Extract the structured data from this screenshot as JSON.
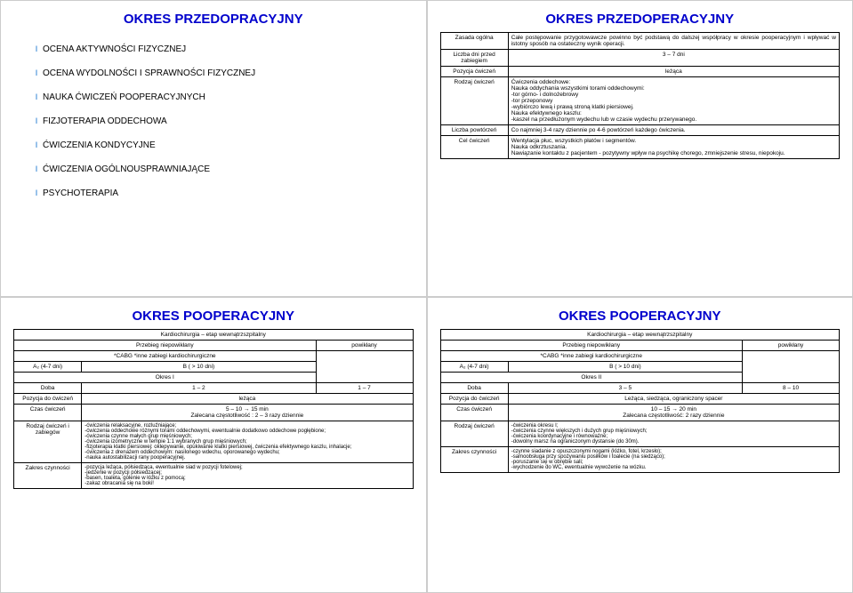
{
  "slide1": {
    "title": "OKRES PRZEDOPRACYJNY",
    "items": [
      "OCENA AKTYWNOŚCI FIZYCZNEJ",
      "OCENA WYDOLNOŚCI I SPRAWNOŚCI FIZYCZNEJ",
      "NAUKA ĆWICZEŃ POOPERACYJNYCH",
      "FIZJOTERAPIA ODDECHOWA",
      "ĆWICZENIA KONDYCYJNE",
      "ĆWICZENIA OGÓLNOUSPRAWNIAJĄCE",
      "PSYCHOTERAPIA"
    ]
  },
  "slide2": {
    "title": "OKRES PRZEDOPERACYJNY",
    "rows": {
      "r1l": "Zasada ogólna",
      "r1v": "Całe postępowanie przygotowawcze powinno być podstawą do dalszej współpracy w okresie pooperacyjnym i wpływać w istotny sposób na ostateczny wynik operacji.",
      "r2l": "Liczba dni przed zabiegiem",
      "r2v": "3 – 7 dni",
      "r3l": "Pozycja ćwiczeń",
      "r3v": "leżąca",
      "r4l": "Rodzaj ćwiczeń",
      "r4v": "Ćwiczenia oddechowe:\nNauka oddychania wszystkimi torami oddechowymi:\n-tor górno- i dolnożebrowy\n-tor przeponowy\n-wybiórczo lewą i prawą stroną klatki piersiowej.\nNauka efektywnego kaszlu:\n-kaszel na przedłużonym wydechu lub w czasie wydechu przerywanego.",
      "r5l": "Liczba powtórzeń",
      "r5v": "Co najmniej 3-4 razy dziennie po 4-6 powtórzeń każdego ćwiczenia.",
      "r6l": "Cel ćwiczeń",
      "r6v": "Wentylacja płuc, wszystkich płatów i segmentów.\nNauka odkrztuszania.\nNawiązanie kontaktu z pacjentem - pozytywny wpływ na psychikę chorego, zmniejszenie stresu, niepokoju."
    }
  },
  "slide3": {
    "title": "OKRES POOPERACYJNY",
    "h1": "Kardiochirurgia – etap wewnątrzszpitalny",
    "h2a": "Przebieg niepowikłany",
    "h2b": "powikłany",
    "h3": "*CABG    *inne zabiegi kardiochirurgiczne",
    "h4a": "A₂ (4-7 dni)",
    "h4b": "B ( > 10 dni)",
    "h5": "Okres I",
    "r1l": "Doba",
    "r1a": "1 – 2",
    "r1b": "1 – 7",
    "r2l": "Pozycja do ćwiczeń",
    "r2v": "leżąca",
    "r3l": "Czas ćwiczeń",
    "r3v": "5 – 10 → 15 min\nZalecana częstotliwość : 2 – 3 razy dziennie",
    "r4l": "Rodzaj ćwiczeń i zabiegów",
    "r4v": "-ćwiczenia relaksacyjne, rozluźniające;\n-ćwiczenia oddechowe różnymi torami oddechowymi, ewentualnie dodatkowo oddechowe pogłębione;\n-ćwiczenia czynne małych grup mięśniowych;\n-ćwiczenia izometryczne w tempie 1:1 wybranych grup mięśniowych;\n-fizjoterapia klatki piersiowej: oklepywanie, opukiwanie klatki piersiowej, ćwiczenia efektywnego kaszlu, inhalacje;\n-ćwiczenia z drenażem oddechowym: nasilonego wdechu, oporowanego wydechu;\n-nauka autostabilizacji rany pooperacyjnej.",
    "r5l": "Zakres czynności",
    "r5v": "-pozycja leżąca, półsiedząca, ewentualnie siad w pozycji fotelowej;\n-jedzenie w pozycji półsiedzącej;\n-basen, toaleta, golenie w łóżku z pomocą;\n-zakaz obracania się na boki!"
  },
  "slide4": {
    "title": "OKRES POOPERACYJNY",
    "h1": "Kardiochirurgia – etap wewnątrzszpitalny",
    "h2a": "Przebieg niepowikłany",
    "h2b": "powikłany",
    "h3": "*CABG    *inne zabiegi kardiochirurgiczne",
    "h4a": "A₂ (4-7 dni)",
    "h4b": "B ( > 10 dni)",
    "h5": "Okres II",
    "r1l": "Doba",
    "r1a": "3 – 5",
    "r1b": "8 – 10",
    "r2l": "Pozycja do ćwiczeń",
    "r2v": "Leżąca, siedząca, ograniczony spacer",
    "r3l": "Czas ćwiczeń",
    "r3v": "10 – 15 → 20 min\nZalecana częstotliwość: 2 razy dziennie",
    "r4l": "Rodzaj ćwiczeń",
    "r4v": "-ćwiczenia okresu I;\n-ćwiczenia czynne większych i dużych grup mięśniowych;\n-ćwiczenia koordynacyjne i równoważne;\n-dowolny marsz na ograniczonym dystansie (do 30m).",
    "r5l": "Zakres czynności",
    "r5v": "-czynne siadanie z opuszczonymi nogami (łóżko, fotel, krzesło);\n-samoobsługa przy spożywaniu posiłków i toalecie (na siedząco);\n-poruszanie się w obrębie sali;\n-wychodzenie do WC, ewentualnie wywożenie na wózku."
  }
}
